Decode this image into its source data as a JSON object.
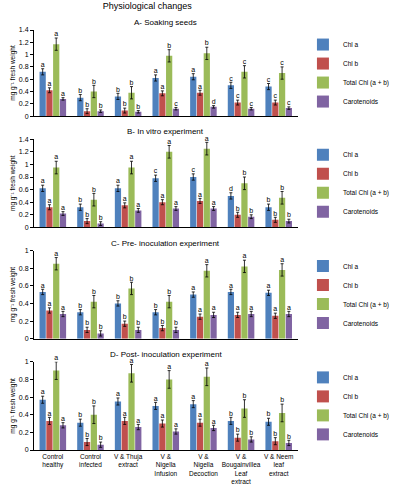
{
  "title": "Physiological changes",
  "chart_data": [
    {
      "type": "bar",
      "title": "A- Soaking seeds",
      "y_label": "mg g⁻¹ fresh weight",
      "categories": [
        "Control healthy",
        "Control infected",
        "V & Thuja extract",
        "V & Nigella Infusion",
        "V & Nigella Decoction",
        "V & Bougainvillea Leaf extract",
        "V & Neem leaf extract"
      ],
      "ylim": [
        0,
        1.4
      ],
      "yticks": [
        0,
        0.2,
        0.4,
        0.6,
        0.8,
        1,
        1.2,
        1.4
      ],
      "grid": false,
      "legend": "right",
      "tick_labels": "y",
      "series": [
        {
          "name": "Chl a",
          "color": "#4f81bd",
          "values": [
            0.72,
            0.3,
            0.32,
            0.62,
            0.64,
            0.5,
            0.48
          ],
          "errors": [
            0.05,
            0.05,
            0.05,
            0.05,
            0.05,
            0.05,
            0.05
          ],
          "letters": [
            "a",
            "b",
            "b",
            "a",
            "a",
            "c",
            "c"
          ]
        },
        {
          "name": "Chl b",
          "color": "#c0504d",
          "values": [
            0.42,
            0.08,
            0.09,
            0.37,
            0.38,
            0.22,
            0.22
          ],
          "errors": [
            0.04,
            0.04,
            0.04,
            0.04,
            0.04,
            0.04,
            0.04
          ],
          "letters": [
            "a",
            "b",
            "b",
            "a",
            "a",
            "c",
            "c"
          ]
        },
        {
          "name": "Total Chl (a + b)",
          "color": "#9bbb59",
          "values": [
            1.17,
            0.4,
            0.38,
            0.98,
            1.02,
            0.72,
            0.7
          ],
          "errors": [
            0.1,
            0.1,
            0.1,
            0.1,
            0.1,
            0.1,
            0.1
          ],
          "letters": [
            "a",
            "b",
            "b",
            "b",
            "b",
            "c",
            "c"
          ]
        },
        {
          "name": "Carotenoids",
          "color": "#8064a2",
          "values": [
            0.28,
            0.08,
            0.07,
            0.12,
            0.15,
            0.12,
            0.13
          ],
          "errors": [
            0.02,
            0.02,
            0.02,
            0.02,
            0.02,
            0.02,
            0.02
          ],
          "letters": [
            "a",
            "b",
            "b",
            "c",
            "d",
            "c",
            "c"
          ]
        }
      ]
    },
    {
      "type": "bar",
      "title": "B- In vitro experiment",
      "y_label": "mg g⁻¹ fresh weight",
      "categories": [
        "Control healthy",
        "Control infected",
        "V & Thuja extract",
        "V & Nigella Infusion",
        "V & Nigella Decoction",
        "V & Bougainvillea Leaf extract",
        "V & Neem leaf extract"
      ],
      "ylim": [
        0,
        1.4
      ],
      "yticks": [
        0,
        0.2,
        0.4,
        0.6,
        0.8,
        1,
        1.2,
        1.4
      ],
      "grid": false,
      "legend": "right",
      "tick_labels": "y",
      "series": [
        {
          "name": "Chl a",
          "color": "#4f81bd",
          "values": [
            0.62,
            0.32,
            0.62,
            0.78,
            0.8,
            0.5,
            0.32
          ],
          "errors": [
            0.05,
            0.05,
            0.05,
            0.05,
            0.05,
            0.05,
            0.05
          ],
          "letters": [
            "a",
            "b",
            "a",
            "c",
            "c",
            "d",
            "b"
          ]
        },
        {
          "name": "Chl b",
          "color": "#c0504d",
          "values": [
            0.32,
            0.1,
            0.35,
            0.4,
            0.42,
            0.2,
            0.12
          ],
          "errors": [
            0.04,
            0.04,
            0.04,
            0.04,
            0.04,
            0.04,
            0.04
          ],
          "letters": [
            "a",
            "b",
            "a",
            "a",
            "a",
            "b",
            "b"
          ]
        },
        {
          "name": "Total Chl (a + b)",
          "color": "#9bbb59",
          "values": [
            0.95,
            0.44,
            0.95,
            1.2,
            1.25,
            0.7,
            0.47
          ],
          "errors": [
            0.1,
            0.1,
            0.1,
            0.1,
            0.1,
            0.1,
            0.1
          ],
          "letters": [
            "a",
            "b",
            "a",
            "a",
            "a",
            "b",
            "b"
          ]
        },
        {
          "name": "Carotenoids",
          "color": "#8064a2",
          "values": [
            0.22,
            0.06,
            0.27,
            0.3,
            0.3,
            0.17,
            0.1
          ],
          "errors": [
            0.03,
            0.03,
            0.03,
            0.03,
            0.03,
            0.03,
            0.03
          ],
          "letters": [
            "a",
            "b",
            "a",
            "a",
            "a",
            "b",
            "b"
          ]
        }
      ]
    },
    {
      "type": "bar",
      "title": "C- Pre- inoculation experiment",
      "y_label": "mg g⁻¹ fresh weight",
      "categories": [
        "Control healthy",
        "Control infected",
        "V & Thuja extract",
        "V & Nigella Infusion",
        "V & Nigella Decoction",
        "V & Bougainvillea Leaf extract",
        "V & Neem leaf extract"
      ],
      "ylim": [
        0,
        1
      ],
      "yticks": [
        0,
        0.2,
        0.4,
        0.6,
        0.8,
        1
      ],
      "grid": false,
      "legend": "right",
      "tick_labels": "y",
      "series": [
        {
          "name": "Chl a",
          "color": "#4f81bd",
          "values": [
            0.53,
            0.3,
            0.4,
            0.3,
            0.5,
            0.53,
            0.52
          ],
          "errors": [
            0.03,
            0.03,
            0.03,
            0.03,
            0.03,
            0.03,
            0.03
          ],
          "letters": [
            "a",
            "b",
            "b",
            "b",
            "a",
            "a",
            "a"
          ]
        },
        {
          "name": "Chl b",
          "color": "#c0504d",
          "values": [
            0.32,
            0.1,
            0.17,
            0.12,
            0.25,
            0.27,
            0.26
          ],
          "errors": [
            0.03,
            0.03,
            0.03,
            0.03,
            0.03,
            0.03,
            0.03
          ],
          "letters": [
            "a",
            "b",
            "b",
            "b",
            "a",
            "a",
            "a"
          ]
        },
        {
          "name": "Total Chl (a + b)",
          "color": "#9bbb59",
          "values": [
            0.85,
            0.42,
            0.57,
            0.42,
            0.77,
            0.82,
            0.78
          ],
          "errors": [
            0.07,
            0.07,
            0.07,
            0.07,
            0.07,
            0.07,
            0.07
          ],
          "letters": [
            "a",
            "b",
            "b",
            "b",
            "a",
            "a",
            "a"
          ]
        },
        {
          "name": "Carotenoids",
          "color": "#8064a2",
          "values": [
            0.28,
            0.06,
            0.1,
            0.1,
            0.27,
            0.28,
            0.28
          ],
          "errors": [
            0.03,
            0.03,
            0.03,
            0.03,
            0.03,
            0.03,
            0.03
          ],
          "letters": [
            "a",
            "b",
            "b",
            "b",
            "a",
            "a",
            "a"
          ]
        }
      ]
    },
    {
      "type": "bar",
      "title": "D- Post- inoculation experiment",
      "y_label": "mg g⁻¹ fresh weight",
      "categories": [
        "Control healthy",
        "Control infected",
        "V & Thuja extract",
        "V & Nigella Infusion",
        "V & Nigella Decoction",
        "V & Bougainvillea Leaf extract",
        "V & Neem leaf extract"
      ],
      "ylim": [
        0,
        1
      ],
      "yticks": [
        0,
        0.2,
        0.4,
        0.6,
        0.8,
        1
      ],
      "grid": false,
      "legend": "right",
      "series": [
        {
          "name": "Chl a",
          "color": "#4f81bd",
          "values": [
            0.57,
            0.31,
            0.55,
            0.5,
            0.52,
            0.33,
            0.32
          ],
          "errors": [
            0.04,
            0.04,
            0.04,
            0.04,
            0.04,
            0.04,
            0.04
          ],
          "letters": [
            "a",
            "b",
            "a",
            "a",
            "a",
            "b",
            "b"
          ]
        },
        {
          "name": "Chl b",
          "color": "#c0504d",
          "values": [
            0.33,
            0.09,
            0.33,
            0.3,
            0.31,
            0.14,
            0.1
          ],
          "errors": [
            0.04,
            0.04,
            0.04,
            0.04,
            0.04,
            0.04,
            0.04
          ],
          "letters": [
            "a",
            "b",
            "a",
            "a",
            "a",
            "b",
            "b"
          ]
        },
        {
          "name": "Total Chl (a + b)",
          "color": "#9bbb59",
          "values": [
            0.9,
            0.4,
            0.87,
            0.8,
            0.83,
            0.47,
            0.42
          ],
          "errors": [
            0.1,
            0.1,
            0.1,
            0.1,
            0.1,
            0.1,
            0.1
          ],
          "letters": [
            "a",
            "b",
            "a",
            "a",
            "a",
            "b",
            "b"
          ]
        },
        {
          "name": "Carotenoids",
          "color": "#8064a2",
          "values": [
            0.28,
            0.06,
            0.26,
            0.21,
            0.25,
            0.12,
            0.08
          ],
          "errors": [
            0.03,
            0.03,
            0.03,
            0.03,
            0.03,
            0.03,
            0.03
          ],
          "letters": [
            "a",
            "b",
            "a",
            "a",
            "a",
            "b",
            "b"
          ]
        }
      ]
    }
  ]
}
